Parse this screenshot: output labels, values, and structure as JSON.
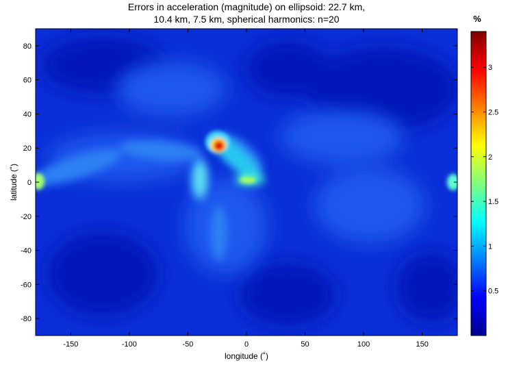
{
  "chart_data": {
    "type": "heatmap",
    "title": [
      "Errors in acceleration (magnitude) on ellipsoid: 22.7 km,",
      "10.4 km, 7.5 km, spherical harmonics: n=20"
    ],
    "xlabel": "longitude (˚)",
    "ylabel": "latitude (˚)",
    "xlim": [
      -180,
      180
    ],
    "ylim": [
      -90,
      90
    ],
    "xticks": [
      -150,
      -100,
      -50,
      0,
      50,
      100,
      150
    ],
    "yticks": [
      80,
      60,
      40,
      20,
      0,
      -20,
      -40,
      -60,
      -80
    ],
    "colorbar": {
      "unit": "%",
      "range": [
        0,
        3.4
      ],
      "ticks": [
        0.5,
        1,
        1.5,
        2,
        2.5,
        3
      ],
      "colormap": "jet"
    },
    "features": [
      {
        "lon": -23,
        "lat": 21,
        "value": 3.3
      },
      {
        "lon": -30,
        "lat": 28,
        "value": 1.8
      },
      {
        "lon": -10,
        "lat": 12,
        "value": 1.4
      },
      {
        "lon": 5,
        "lat": 2,
        "value": 1.6
      },
      {
        "lon": -40,
        "lat": 0,
        "value": 1.2
      },
      {
        "lon": -178,
        "lat": 1,
        "value": 1.7
      },
      {
        "lon": 178,
        "lat": 0,
        "value": 1.3
      },
      {
        "lon": -100,
        "lat": 14,
        "value": 0.6
      },
      {
        "lon": 100,
        "lat": -25,
        "value": 0.5
      }
    ]
  }
}
